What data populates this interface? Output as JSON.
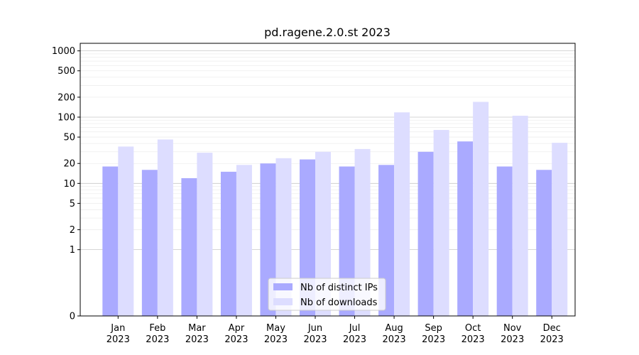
{
  "chart_data": {
    "type": "bar",
    "title": "pd.ragene.2.0.st 2023",
    "xlabel": "",
    "ylabel": "",
    "y_scale": "symlog",
    "ylim": [
      0,
      1300
    ],
    "y_ticks": [
      0,
      1,
      2,
      5,
      10,
      20,
      50,
      100,
      200,
      500,
      1000
    ],
    "categories": [
      [
        "Jan",
        "2023"
      ],
      [
        "Feb",
        "2023"
      ],
      [
        "Mar",
        "2023"
      ],
      [
        "Apr",
        "2023"
      ],
      [
        "May",
        "2023"
      ],
      [
        "Jun",
        "2023"
      ],
      [
        "Jul",
        "2023"
      ],
      [
        "Aug",
        "2023"
      ],
      [
        "Sep",
        "2023"
      ],
      [
        "Oct",
        "2023"
      ],
      [
        "Nov",
        "2023"
      ],
      [
        "Dec",
        "2023"
      ]
    ],
    "series": [
      {
        "name": "Nb of distinct IPs",
        "color": "#aaaaff",
        "values": [
          18,
          16,
          12,
          15,
          20,
          23,
          18,
          19,
          30,
          43,
          18,
          16
        ]
      },
      {
        "name": "Nb of downloads",
        "color": "#ddddff",
        "values": [
          36,
          46,
          29,
          19,
          24,
          30,
          33,
          118,
          64,
          170,
          105,
          41
        ]
      }
    ],
    "grid": true,
    "legend_position": "bottom-center"
  }
}
